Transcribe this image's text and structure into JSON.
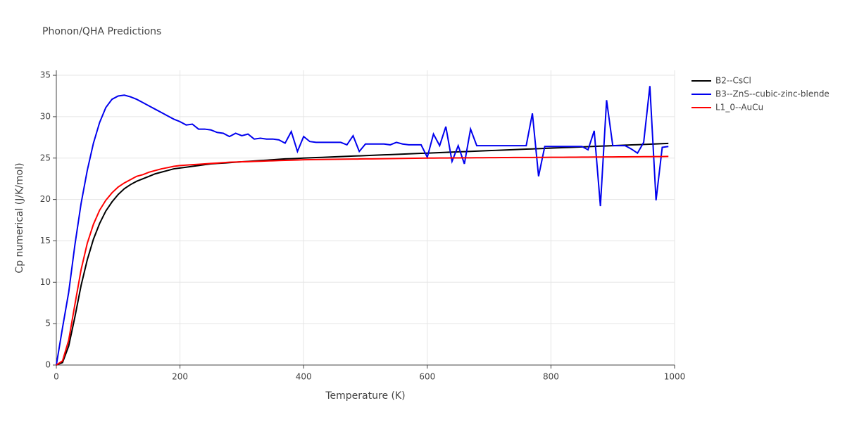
{
  "chart_data": {
    "type": "line",
    "title": "Phonon/QHA Predictions",
    "x_label": "Temperature (K)",
    "y_label": "Cp numerical (J/K/mol)",
    "x": [
      0,
      10,
      20,
      30,
      40,
      50,
      60,
      70,
      80,
      90,
      100,
      110,
      120,
      130,
      140,
      150,
      160,
      170,
      180,
      190,
      200,
      210,
      220,
      230,
      240,
      250,
      260,
      270,
      280,
      290,
      300,
      310,
      320,
      330,
      340,
      350,
      360,
      370,
      380,
      390,
      400,
      410,
      420,
      430,
      440,
      450,
      460,
      470,
      480,
      490,
      500,
      510,
      520,
      530,
      540,
      550,
      560,
      570,
      580,
      590,
      600,
      610,
      620,
      630,
      640,
      650,
      660,
      670,
      680,
      690,
      700,
      710,
      720,
      730,
      740,
      750,
      760,
      770,
      780,
      790,
      800,
      810,
      820,
      830,
      840,
      850,
      860,
      870,
      880,
      890,
      900,
      910,
      920,
      930,
      940,
      950,
      960,
      970,
      980,
      990
    ],
    "series": [
      {
        "name": "B2--CsCl",
        "color": "#000000",
        "values": [
          0,
          0.3,
          2.3,
          5.8,
          9.6,
          12.7,
          15.2,
          17.1,
          18.6,
          19.7,
          20.6,
          21.3,
          21.8,
          22.2,
          22.5,
          22.8,
          23.1,
          23.3,
          23.5,
          23.7,
          23.8,
          23.9,
          24.0,
          24.1,
          24.2,
          24.3,
          24.35,
          24.4,
          24.45,
          24.5,
          24.55,
          24.6,
          24.65,
          24.7,
          24.75,
          24.8,
          24.85,
          24.9,
          24.93,
          24.96,
          25.0,
          25.03,
          25.06,
          25.09,
          25.12,
          25.15,
          25.18,
          25.21,
          25.24,
          25.27,
          25.3,
          25.33,
          25.36,
          25.39,
          25.42,
          25.45,
          25.48,
          25.51,
          25.54,
          25.57,
          25.6,
          25.63,
          25.66,
          25.69,
          25.72,
          25.75,
          25.78,
          25.81,
          25.84,
          25.87,
          25.9,
          25.93,
          25.96,
          25.99,
          26.02,
          26.05,
          26.08,
          26.11,
          26.14,
          26.17,
          26.2,
          26.23,
          26.26,
          26.29,
          26.32,
          26.35,
          26.38,
          26.41,
          26.44,
          26.47,
          26.5,
          26.53,
          26.56,
          26.59,
          26.62,
          26.65,
          26.68,
          26.71,
          26.74,
          26.77
        ]
      },
      {
        "name": "B3--ZnS--cubic-zinc-blende",
        "color": "#0000ee",
        "values": [
          0,
          4.5,
          8.8,
          14.5,
          19.5,
          23.5,
          26.8,
          29.3,
          31.1,
          32.1,
          32.5,
          32.6,
          32.4,
          32.1,
          31.7,
          31.3,
          30.9,
          30.5,
          30.1,
          29.7,
          29.4,
          29.0,
          29.1,
          28.5,
          28.5,
          28.4,
          28.1,
          28.0,
          27.6,
          28.0,
          27.7,
          27.9,
          27.3,
          27.4,
          27.3,
          27.3,
          27.2,
          26.8,
          28.2,
          25.8,
          27.6,
          27.0,
          26.9,
          26.9,
          26.9,
          26.9,
          26.9,
          26.6,
          27.7,
          25.8,
          26.7,
          26.7,
          26.7,
          26.7,
          26.6,
          26.9,
          26.7,
          26.6,
          26.6,
          26.6,
          25.1,
          27.9,
          26.5,
          28.8,
          24.6,
          26.5,
          24.3,
          28.5,
          26.5,
          26.5,
          26.5,
          26.5,
          26.5,
          26.5,
          26.5,
          26.5,
          26.5,
          30.4,
          22.8,
          26.4,
          26.4,
          26.4,
          26.4,
          26.4,
          26.4,
          26.4,
          26.0,
          28.3,
          19.2,
          32.0,
          26.5,
          26.5,
          26.5,
          26.1,
          25.6,
          26.9,
          33.7,
          19.9,
          26.3,
          26.4
        ]
      },
      {
        "name": "L1_0--AuCu",
        "color": "#ff0000",
        "values": [
          0,
          0.5,
          3.0,
          7.3,
          11.5,
          14.7,
          17.0,
          18.7,
          19.9,
          20.8,
          21.5,
          22.0,
          22.4,
          22.8,
          23.0,
          23.3,
          23.5,
          23.7,
          23.85,
          24.0,
          24.1,
          24.15,
          24.2,
          24.25,
          24.3,
          24.35,
          24.4,
          24.45,
          24.5,
          24.52,
          24.55,
          24.57,
          24.6,
          24.62,
          24.65,
          24.67,
          24.7,
          24.72,
          24.75,
          24.77,
          24.8,
          24.81,
          24.82,
          24.83,
          24.84,
          24.85,
          24.86,
          24.87,
          24.88,
          24.89,
          24.9,
          24.91,
          24.92,
          24.93,
          24.94,
          24.95,
          24.96,
          24.97,
          24.98,
          24.99,
          25.0,
          25.0,
          25.01,
          25.01,
          25.02,
          25.02,
          25.03,
          25.03,
          25.04,
          25.04,
          25.05,
          25.05,
          25.06,
          25.06,
          25.07,
          25.07,
          25.08,
          25.08,
          25.09,
          25.09,
          25.1,
          25.1,
          25.1,
          25.11,
          25.11,
          25.12,
          25.12,
          25.13,
          25.13,
          25.14,
          25.14,
          25.15,
          25.15,
          25.16,
          25.16,
          25.17,
          25.17,
          25.18,
          25.18,
          25.2
        ]
      }
    ],
    "xlim": [
      0,
      1000
    ],
    "xticks": [
      0,
      200,
      400,
      600,
      800,
      1000
    ],
    "ylim": [
      0,
      35.6
    ],
    "yticks": [
      0,
      5,
      10,
      15,
      20,
      25,
      30,
      35
    ],
    "grid": true,
    "legend": "right"
  }
}
